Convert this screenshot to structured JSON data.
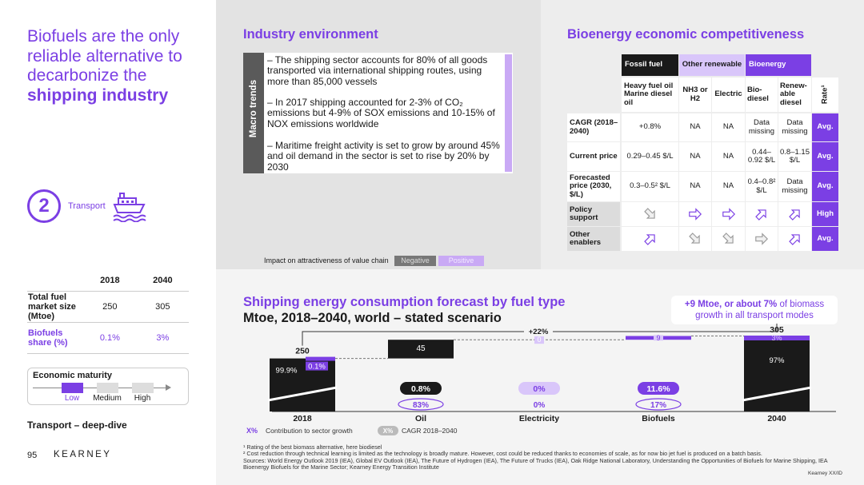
{
  "slide": {
    "title_part1": "Biofuels are the only reliable alternative to decarbonize the",
    "title_part2": "shipping industry",
    "circle_number": "2",
    "transport_label": "Transport",
    "ship_icon": "ship-icon",
    "market_table": {
      "headers": [
        "",
        "2018",
        "2040"
      ],
      "rows": [
        {
          "label": "Total fuel market size (Mtoe)",
          "v2018": "250",
          "v2040": "305"
        },
        {
          "label": "Biofuels share (%)",
          "v2018": "0.1%",
          "v2040": "3%"
        }
      ]
    },
    "maturity": {
      "title": "Economic maturity",
      "levels": [
        "Low",
        "Medium",
        "High"
      ],
      "selected": "Low"
    },
    "deep_dive": "Transport – deep-dive",
    "page_number": "95",
    "brand": "KEARNEY",
    "brand_code": "Kearney XX/ID"
  },
  "industry": {
    "title": "Industry environment",
    "side_label": "Macro trends",
    "bullets": [
      "– The shipping sector accounts for 80% of all goods transported via international shipping routes, using more than 85,000 vessels",
      "– In 2017 shipping accounted for 2-3% of CO₂ emissions but 4-9% of SOX emissions and 10-15% of NOX emissions worldwide",
      "– Maritime freight activity is set to grow by around 45% and oil demand in the sector is set to rise by 20% by 2030"
    ],
    "impact_label": "Impact on attractiveness of value chain",
    "negative": "Negative",
    "positive": "Positive"
  },
  "competitiveness": {
    "title": "Bioenergy economic competitiveness",
    "groups": [
      "Fossil fuel",
      "Other renewable",
      "Bioenergy"
    ],
    "columns": [
      "Heavy fuel oil Marine diesel oil",
      "NH3 or H2",
      "Electric",
      "Bio-diesel",
      "Renew-able diesel",
      "Rate¹"
    ],
    "rows": [
      {
        "label": "CAGR (2018–2040)",
        "cells": [
          "+0.8%",
          "NA",
          "NA",
          "Data missing",
          "Data missing"
        ],
        "rate": "Avg."
      },
      {
        "label": "Current price",
        "cells": [
          "0.29–0.45 $/L",
          "NA",
          "NA",
          "0.44–0.92 $/L",
          "0.8–1.15 $/L"
        ],
        "rate": "Avg."
      },
      {
        "label": "Forecasted price (2030, $/L)",
        "cells": [
          "0.3–0.5² $/L",
          "NA",
          "NA",
          "0.4–0.8² $/L",
          "Data missing"
        ],
        "rate": "Avg."
      },
      {
        "label": "Policy support",
        "arrows": [
          "down-right",
          "right",
          "right",
          "up-right",
          "up-right"
        ],
        "rate": "High"
      },
      {
        "label": "Other enablers",
        "arrows": [
          "up-right",
          "down-right",
          "down-right",
          "right",
          "up-right"
        ],
        "rate": "Avg."
      }
    ]
  },
  "forecast": {
    "title": "Shipping energy consumption forecast by fuel type",
    "subtitle": "Mtoe, 2018–2040, world – stated scenario",
    "callout_strong": "+9 Mtoe, or about 7%",
    "callout_rest": "of biomass growth in all transport modes",
    "growth_label": "+22%",
    "legend_x": "X%",
    "legend_contrib": "Contribution to sector growth",
    "legend_cagr": "CAGR 2018–2040",
    "colors": {
      "dark": "#1a1a1a",
      "purple": "#7b3fe4",
      "light_purple": "#d9c6fa",
      "grey": "#bdbdbd"
    }
  },
  "chart_data": {
    "type": "bar",
    "categories": [
      "2018",
      "Oil",
      "Electricity",
      "Biofuels",
      "2040"
    ],
    "totals": {
      "2018": 250,
      "2040": 305
    },
    "increments": {
      "Oil": 45,
      "Electricity": 0,
      "Biofuels": 9
    },
    "share_labels": {
      "2018_fossil": "99.9%",
      "2018_bio": "0.1%",
      "2040_fossil": "97%",
      "2040_bio": "3%"
    },
    "cagr": {
      "Oil": "0.8%",
      "Electricity": "0%",
      "Biofuels": "11.6%"
    },
    "contribution": {
      "Oil": "83%",
      "Electricity": "0%",
      "Biofuels": "17%"
    }
  },
  "footnotes": [
    "¹ Rating of the best biomass alternative, here biodiesel",
    "² Cost reduction through technical learning is limited as the technology is broadly mature. However, cost could be reduced thanks to economies of scale, as for now bio jet fuel is produced on a batch basis.",
    "Sources: World Energy Outlook 2019 (IEA), Global EV Outlook (IEA), The Future of Hydrogen (IEA), The Future of Trucks (IEA), Oak Ridge National Laboratory, Understanding the Opportunities of Biofuels for Marine Shipping, IEA Bioenergy Biofuels for the Marine Sector; Kearney Energy Transition Institute"
  ]
}
